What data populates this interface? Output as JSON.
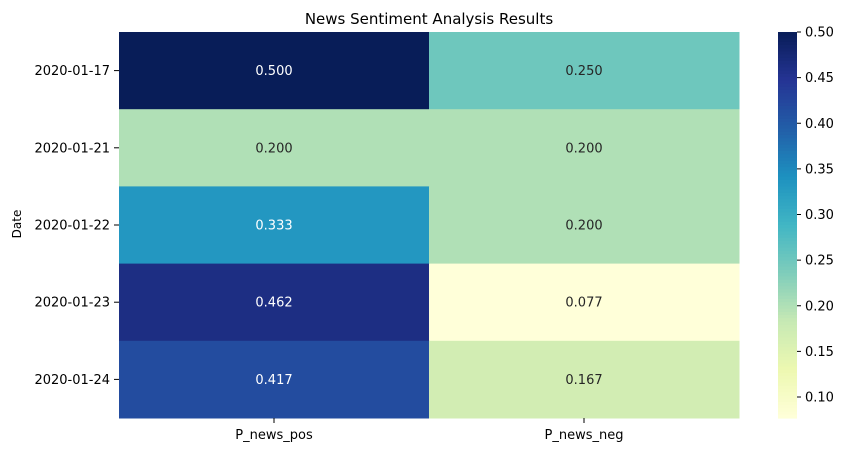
{
  "chart_data": {
    "type": "heatmap",
    "title": "News Sentiment Analysis Results",
    "xlabel": "",
    "ylabel": "Date",
    "rows": [
      "2020-01-17",
      "2020-01-21",
      "2020-01-22",
      "2020-01-23",
      "2020-01-24"
    ],
    "columns": [
      "P_news_pos",
      "P_news_neg"
    ],
    "values": [
      [
        0.5,
        0.25
      ],
      [
        0.2,
        0.2
      ],
      [
        0.333,
        0.2
      ],
      [
        0.462,
        0.077
      ],
      [
        0.417,
        0.167
      ]
    ],
    "annotations": [
      [
        "0.500",
        "0.250"
      ],
      [
        "0.200",
        "0.200"
      ],
      [
        "0.333",
        "0.200"
      ],
      [
        "0.462",
        "0.077"
      ],
      [
        "0.417",
        "0.167"
      ]
    ],
    "colormap": "YlGnBu",
    "color_range": [
      0.077,
      0.5
    ],
    "colorbar_ticks": [
      "0.10",
      "0.15",
      "0.20",
      "0.25",
      "0.30",
      "0.35",
      "0.40",
      "0.45",
      "0.50"
    ],
    "colorbar_tick_values": [
      0.1,
      0.15,
      0.2,
      0.25,
      0.3,
      0.35,
      0.4,
      0.45,
      0.5
    ],
    "grid": false,
    "legend": "colorbar-right"
  }
}
